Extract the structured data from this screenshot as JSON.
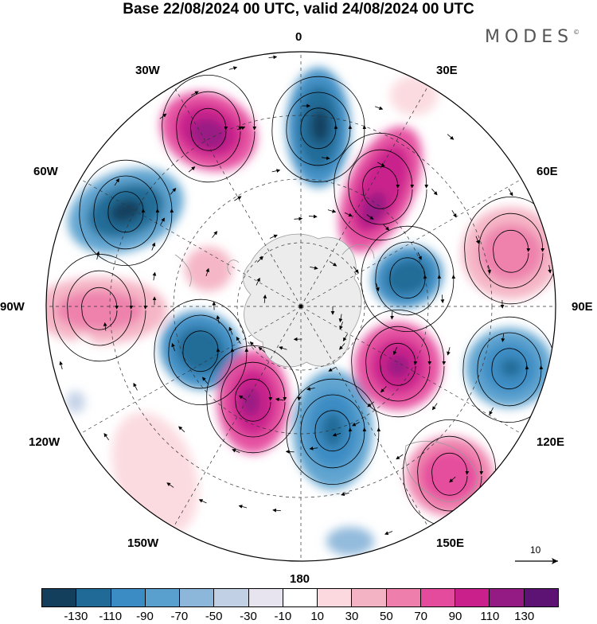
{
  "header": {
    "title": "Base 22/08/2024 00 UTC, valid 24/08/2024 00 UTC",
    "brand": "MODES",
    "brand_mark": "©"
  },
  "map": {
    "projection": "south-polar-stereographic",
    "field": "anomaly-shading-with-streamlines",
    "longitude_labels": [
      "0",
      "30E",
      "60E",
      "90E",
      "120E",
      "150E",
      "180",
      "150W",
      "120W",
      "90W",
      "60W",
      "30W"
    ],
    "vector_reference": {
      "label": "10"
    }
  },
  "colorbar": {
    "colors": [
      "#143f5c",
      "#1f6a96",
      "#3b8cc4",
      "#5aa0cf",
      "#8db7da",
      "#c2d0e6",
      "#e7e4f0",
      "#ffffff",
      "#fbd9de",
      "#f4b3c4",
      "#ee7fac",
      "#e54b9d",
      "#c9208b",
      "#951b84",
      "#5d1373"
    ],
    "tick_labels": [
      "-130",
      "-110",
      "-90",
      "-70",
      "-50",
      "-30",
      "-10",
      "10",
      "30",
      "50",
      "70",
      "90",
      "110",
      "130"
    ]
  }
}
